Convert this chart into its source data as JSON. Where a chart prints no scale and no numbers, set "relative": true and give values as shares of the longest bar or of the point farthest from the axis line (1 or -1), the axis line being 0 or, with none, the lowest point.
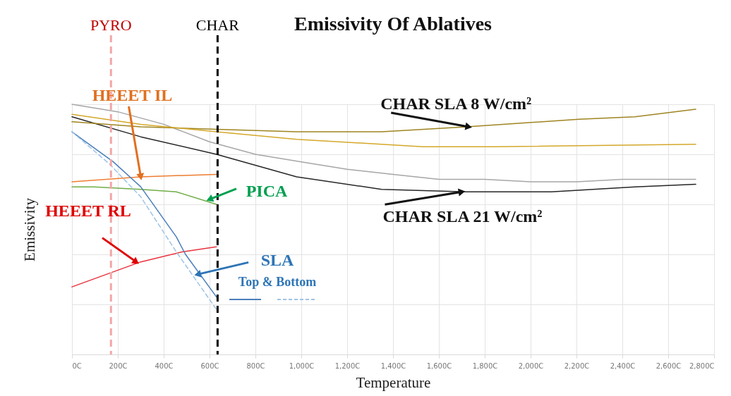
{
  "chart_data": {
    "type": "line",
    "title": "Emissivity Of Ablatives",
    "xlabel": "Temperature",
    "ylabel": "Emissivity",
    "relative": true,
    "grid": true,
    "xlim": [
      0,
      2800
    ],
    "xticks": [
      {
        "value": 0,
        "label": "0C"
      },
      {
        "value": 200,
        "label": "200C"
      },
      {
        "value": 400,
        "label": "400C"
      },
      {
        "value": 600,
        "label": "600C"
      },
      {
        "value": 800,
        "label": "800C"
      },
      {
        "value": 1000,
        "label": "1,000C"
      },
      {
        "value": 1200,
        "label": "1,200C"
      },
      {
        "value": 1400,
        "label": "1,400C"
      },
      {
        "value": 1600,
        "label": "1,600C"
      },
      {
        "value": 1800,
        "label": "1,800C"
      },
      {
        "value": 2000,
        "label": "2,000C"
      },
      {
        "value": 2200,
        "label": "2,200C"
      },
      {
        "value": 2400,
        "label": "2,400C"
      },
      {
        "value": 2600,
        "label": "2,600C"
      },
      {
        "value": 2800,
        "label": "2,800C"
      }
    ],
    "series": [
      {
        "color": "#a6a6a6",
        "x": [
          0,
          200,
          400,
          600,
          800,
          1000,
          1200,
          1400,
          1600,
          1800,
          2000,
          2200,
          2400,
          2600,
          2720
        ],
        "values": [
          1.0,
          0.97,
          0.92,
          0.85,
          0.8,
          0.77,
          0.74,
          0.72,
          0.7,
          0.7,
          0.69,
          0.69,
          0.7,
          0.7,
          0.7
        ]
      },
      {
        "color": "#262626",
        "x": [
          0,
          300,
          630,
          980,
          1350,
          1720,
          2090,
          2455,
          2720
        ],
        "values": [
          0.95,
          0.87,
          0.8,
          0.71,
          0.66,
          0.65,
          0.65,
          0.67,
          0.68
        ]
      },
      {
        "color": "#9e8420",
        "x": [
          0,
          300,
          630,
          980,
          1350,
          1720,
          2210,
          2455,
          2720
        ],
        "values": [
          0.93,
          0.91,
          0.9,
          0.89,
          0.89,
          0.91,
          0.94,
          0.95,
          0.98
        ]
      },
      {
        "color": "#d4a82a",
        "x": [
          0,
          300,
          630,
          980,
          1350,
          1530,
          1840,
          2720
        ],
        "values": [
          0.96,
          0.92,
          0.89,
          0.86,
          0.84,
          0.83,
          0.83,
          0.84
        ]
      },
      {
        "color": "#ed7d31",
        "x": [
          0,
          300,
          630
        ],
        "values": [
          0.69,
          0.71,
          0.72
        ]
      },
      {
        "color": "#70ad47",
        "x": [
          0,
          95,
          300,
          455,
          630
        ],
        "values": [
          0.67,
          0.67,
          0.66,
          0.65,
          0.6
        ]
      },
      {
        "color": "#e8323c",
        "x": [
          0,
          150,
          300,
          480,
          630
        ],
        "values": [
          0.27,
          0.32,
          0.37,
          0.41,
          0.43
        ]
      },
      {
        "color": "#4a7ebb",
        "x": [
          0,
          180,
          300,
          455,
          495,
          630
        ],
        "values": [
          0.89,
          0.77,
          0.67,
          0.47,
          0.4,
          0.23
        ]
      },
      {
        "color": "#9dc3e6",
        "line_style": "dashed",
        "x": [
          0,
          165,
          300,
          455,
          630
        ],
        "values": [
          0.89,
          0.76,
          0.63,
          0.41,
          0.18
        ]
      }
    ],
    "ref_lines": [
      {
        "axis": "x",
        "value": 170,
        "label": "PYRO",
        "color": "#f4a6a6",
        "line_style": "dashed"
      },
      {
        "axis": "x",
        "value": 635,
        "label": "CHAR",
        "color": "#000000",
        "line_style": "dashed"
      }
    ],
    "annotations": [
      {
        "text": "HEEET IL",
        "x": 300,
        "y": 0.71
      },
      {
        "text": "PICA",
        "x": 600,
        "y": 0.62
      },
      {
        "text": "HEEET RL",
        "x": 280,
        "y": 0.37
      },
      {
        "text": "SLA",
        "x": 548,
        "y": 0.32
      },
      "Top & Bottom",
      {
        "text": "CHAR SLA  8 W/cm²",
        "x": 1730,
        "y": 0.91
      },
      {
        "text": "CHAR SLA  21 W/cm²",
        "x": 1700,
        "y": 0.65
      }
    ]
  }
}
